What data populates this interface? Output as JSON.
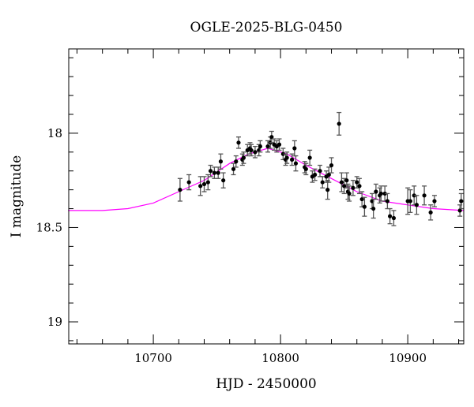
{
  "chart_data": {
    "type": "scatter",
    "title": "OGLE-2025-BLG-0450",
    "xlabel": "HJD - 2450000",
    "ylabel": "I magnitude",
    "xlim": [
      10633.5,
      10944
    ],
    "ylim": [
      19.117,
      17.553
    ],
    "y_inverted": true,
    "xticks": [
      10700,
      10800,
      10900
    ],
    "xtick_labels": [
      "10700",
      "10800",
      "10900"
    ],
    "yticks": [
      18,
      18.5,
      19
    ],
    "ytick_labels": [
      "18",
      "18.5",
      "19"
    ],
    "grid": false,
    "colors": {
      "points": "#000000",
      "errorbars": "#555555",
      "model": "#ff00ff"
    },
    "series": [
      {
        "kind": "points-with-errorbars",
        "points": [
          [
            10721,
            18.3,
            0.06
          ],
          [
            10728,
            18.26,
            0.04
          ],
          [
            10737,
            18.28,
            0.05
          ],
          [
            10740,
            18.27,
            0.04
          ],
          [
            10743,
            18.26,
            0.04
          ],
          [
            10745,
            18.2,
            0.03
          ],
          [
            10748,
            18.21,
            0.03
          ],
          [
            10751,
            18.21,
            0.03
          ],
          [
            10753,
            18.15,
            0.04
          ],
          [
            10755,
            18.25,
            0.04
          ],
          [
            10763,
            18.19,
            0.03
          ],
          [
            10765,
            18.15,
            0.03
          ],
          [
            10767,
            18.05,
            0.03
          ],
          [
            10770,
            18.14,
            0.03
          ],
          [
            10771,
            18.13,
            0.03
          ],
          [
            10774,
            18.09,
            0.03
          ],
          [
            10776,
            18.08,
            0.03
          ],
          [
            10777,
            18.09,
            0.03
          ],
          [
            10780,
            18.1,
            0.03
          ],
          [
            10783,
            18.09,
            0.03
          ],
          [
            10784,
            18.07,
            0.03
          ],
          [
            10790,
            18.07,
            0.03
          ],
          [
            10792,
            18.05,
            0.03
          ],
          [
            10793,
            18.02,
            0.03
          ],
          [
            10795,
            18.06,
            0.03
          ],
          [
            10797,
            18.07,
            0.03
          ],
          [
            10799,
            18.06,
            0.03
          ],
          [
            10802,
            18.11,
            0.03
          ],
          [
            10804,
            18.14,
            0.03
          ],
          [
            10805,
            18.13,
            0.03
          ],
          [
            10809,
            18.14,
            0.03
          ],
          [
            10811,
            18.08,
            0.04
          ],
          [
            10812,
            18.16,
            0.04
          ],
          [
            10819,
            18.18,
            0.03
          ],
          [
            10820,
            18.19,
            0.03
          ],
          [
            10823,
            18.13,
            0.04
          ],
          [
            10825,
            18.23,
            0.03
          ],
          [
            10827,
            18.22,
            0.03
          ],
          [
            10831,
            18.2,
            0.03
          ],
          [
            10833,
            18.26,
            0.03
          ],
          [
            10836,
            18.23,
            0.03
          ],
          [
            10837,
            18.3,
            0.05
          ],
          [
            10838,
            18.22,
            0.04
          ],
          [
            10840,
            18.17,
            0.04
          ],
          [
            10846,
            17.95,
            0.06
          ],
          [
            10848,
            18.26,
            0.05
          ],
          [
            10850,
            18.28,
            0.04
          ],
          [
            10852,
            18.25,
            0.04
          ],
          [
            10853,
            18.31,
            0.04
          ],
          [
            10854,
            18.32,
            0.04
          ],
          [
            10857,
            18.29,
            0.04
          ],
          [
            10860,
            18.26,
            0.03
          ],
          [
            10862,
            18.28,
            0.04
          ],
          [
            10864,
            18.35,
            0.04
          ],
          [
            10866,
            18.39,
            0.05
          ],
          [
            10872,
            18.36,
            0.04
          ],
          [
            10873,
            18.4,
            0.05
          ],
          [
            10875,
            18.31,
            0.04
          ],
          [
            10878,
            18.33,
            0.04
          ],
          [
            10879,
            18.32,
            0.04
          ],
          [
            10882,
            18.32,
            0.04
          ],
          [
            10884,
            18.36,
            0.04
          ],
          [
            10886,
            18.44,
            0.04
          ],
          [
            10889,
            18.45,
            0.04
          ],
          [
            10900,
            18.36,
            0.07
          ],
          [
            10902,
            18.36,
            0.06
          ],
          [
            10905,
            18.33,
            0.05
          ],
          [
            10907,
            18.38,
            0.05
          ],
          [
            10913,
            18.33,
            0.05
          ],
          [
            10918,
            18.42,
            0.04
          ],
          [
            10921,
            18.36,
            0.03
          ],
          [
            10941,
            18.41,
            0.03
          ],
          [
            10942,
            18.36,
            0.04
          ]
        ]
      },
      {
        "kind": "model-curve",
        "x": [
          10633,
          10660,
          10680,
          10700,
          10720,
          10740,
          10760,
          10775,
          10790,
          10805,
          10820,
          10840,
          10860,
          10880,
          10900,
          10920,
          10944
        ],
        "y": [
          18.41,
          18.41,
          18.4,
          18.37,
          18.31,
          18.25,
          18.16,
          18.11,
          18.08,
          18.11,
          18.17,
          18.24,
          18.31,
          18.36,
          18.38,
          18.4,
          18.41
        ]
      }
    ]
  }
}
